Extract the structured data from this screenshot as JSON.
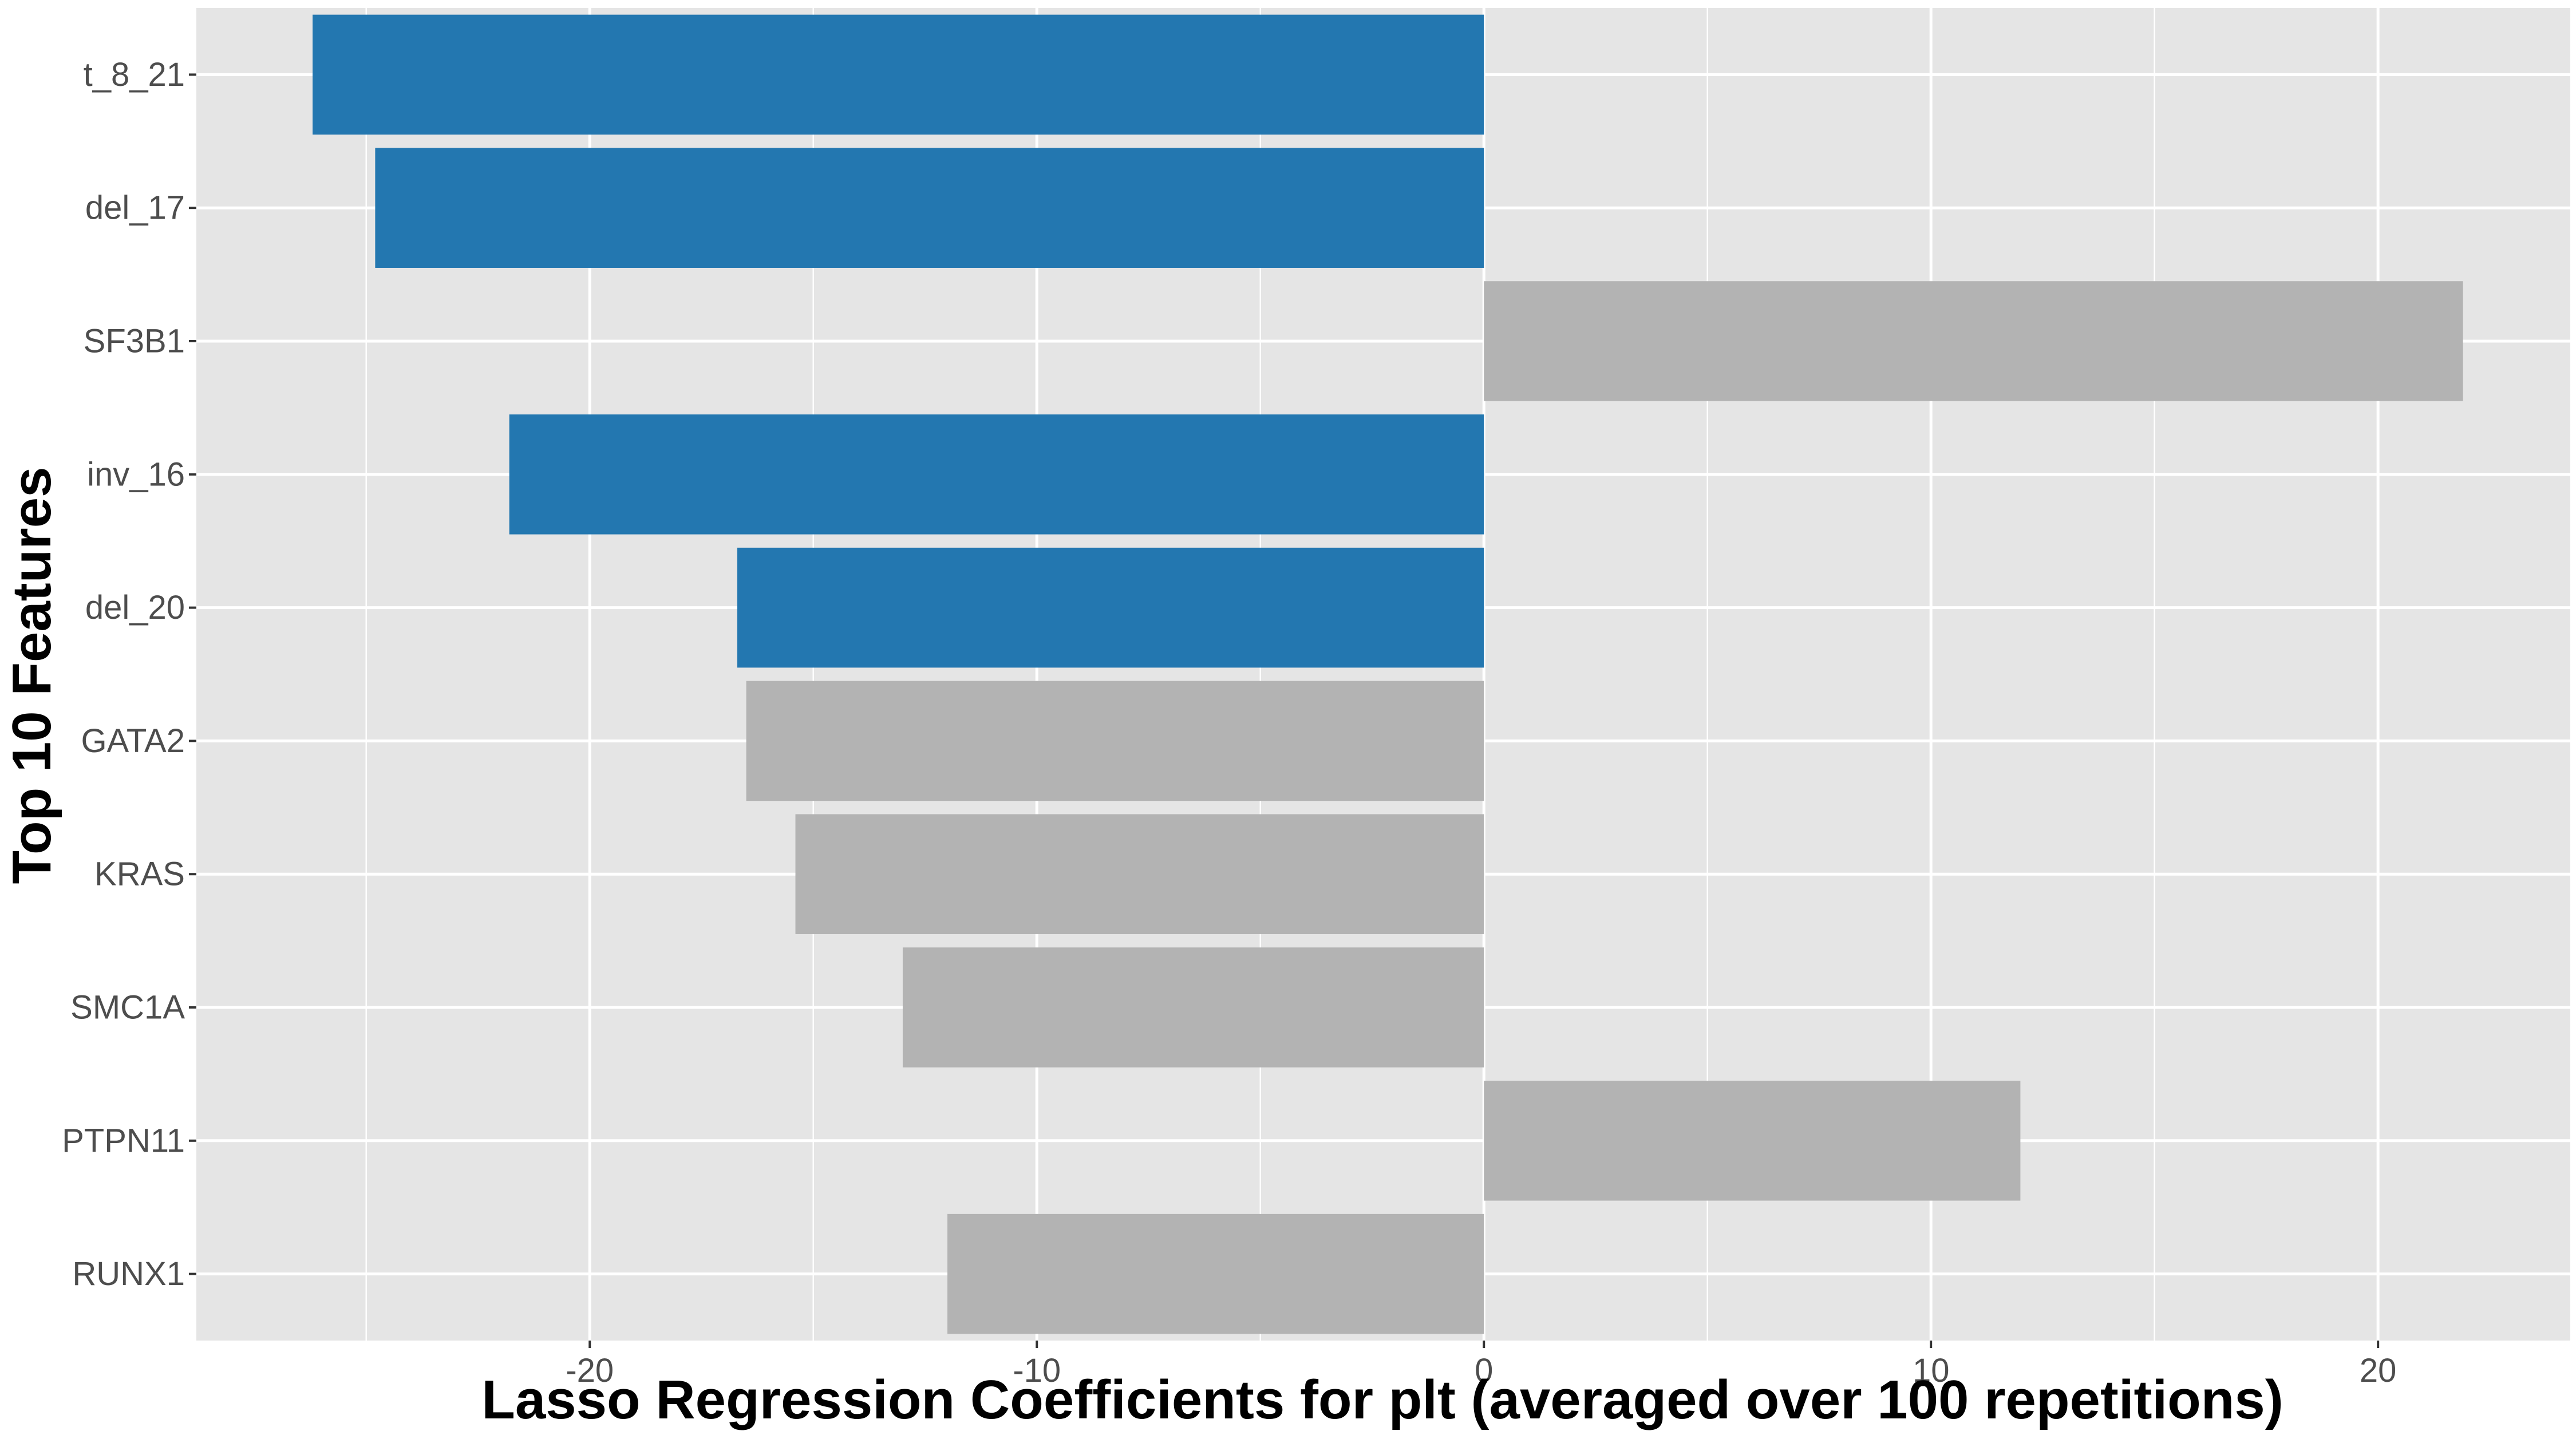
{
  "chart_data": {
    "type": "bar",
    "orientation": "horizontal",
    "categories": [
      "t_8_21",
      "del_17",
      "SF3B1",
      "inv_16",
      "del_20",
      "GATA2",
      "KRAS",
      "SMC1A",
      "PTPN11",
      "RUNX1"
    ],
    "values": [
      -26.2,
      -24.8,
      21.9,
      -21.8,
      -16.7,
      -16.5,
      -15.4,
      -13.0,
      12.0,
      -12.0
    ],
    "bar_colors": [
      "#2377B0",
      "#2377B0",
      "#B3B3B3",
      "#2377B0",
      "#2377B0",
      "#B3B3B3",
      "#B3B3B3",
      "#B3B3B3",
      "#B3B3B3",
      "#B3B3B3"
    ],
    "xlabel": "Lasso Regression Coefficients for plt (averaged over 100 repetitions)",
    "ylabel": "Top 10 Features",
    "xlim": [
      -28.8,
      24.3
    ],
    "xticks": [
      -20,
      -10,
      0,
      10,
      20
    ],
    "grid": true,
    "panel_background": "#E5E5E5",
    "grid_color": "#FFFFFF"
  }
}
